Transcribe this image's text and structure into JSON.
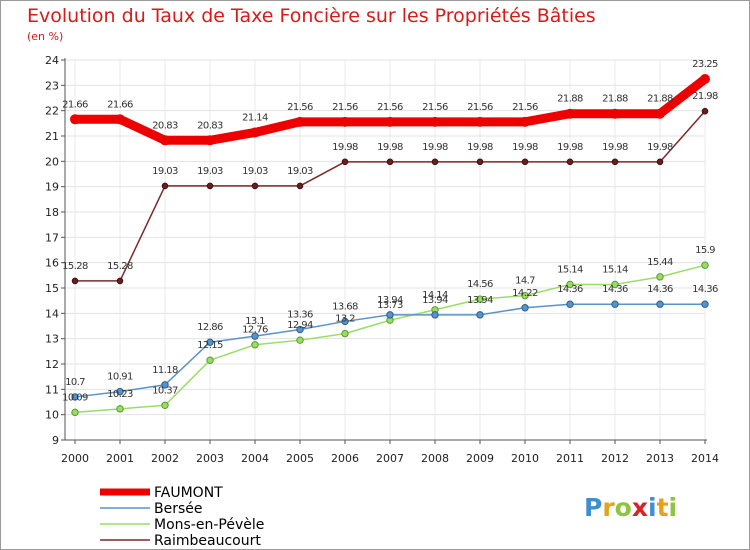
{
  "chart_data": {
    "type": "line",
    "title": "Evolution du Taux de Taxe Foncière sur les Propriétés Bâties",
    "subtitle": "(en %)",
    "xlabel": "",
    "ylabel": "",
    "ylim": [
      9,
      24
    ],
    "yticks": [
      9,
      10,
      11,
      12,
      13,
      14,
      15,
      16,
      17,
      18,
      19,
      20,
      21,
      22,
      23,
      24
    ],
    "grid": true,
    "categories": [
      "2000",
      "2001",
      "2002",
      "2003",
      "2004",
      "2005",
      "2006",
      "2007",
      "2008",
      "2009",
      "2010",
      "2011",
      "2012",
      "2013",
      "2014"
    ],
    "series": [
      {
        "name": "FAUMONT",
        "color": "#ee0000",
        "values": [
          21.66,
          21.66,
          20.83,
          20.83,
          21.14,
          21.56,
          21.56,
          21.56,
          21.56,
          21.56,
          21.56,
          21.88,
          21.88,
          21.88,
          23.25
        ],
        "labels": [
          "21.66",
          "21.66",
          "20.83",
          "20.83",
          "21.14",
          "21.56",
          "21.56",
          "21.56",
          "21.56",
          "21.56",
          "21.56",
          "21.88",
          "21.88",
          "21.88",
          "23.25"
        ]
      },
      {
        "name": "Bersée",
        "color": "#5a93c8",
        "values": [
          10.7,
          10.91,
          11.18,
          12.86,
          13.1,
          13.36,
          13.68,
          13.94,
          13.94,
          13.94,
          14.22,
          14.36,
          14.36,
          14.36,
          14.36
        ],
        "labels": [
          "10.7",
          "10.91",
          "11.18",
          "12.86",
          "13.1",
          "13.36",
          "13.68",
          "13.94",
          "13.94",
          "13.94",
          "14.22",
          "14.36",
          "14.36",
          "14.36",
          "14.36"
        ]
      },
      {
        "name": "Mons-en-Pévèle",
        "color": "#99dd66",
        "values": [
          10.09,
          10.23,
          10.37,
          12.15,
          12.76,
          12.94,
          13.2,
          13.73,
          14.14,
          14.56,
          14.7,
          15.14,
          15.14,
          15.44,
          15.9
        ],
        "labels": [
          "10.09",
          "10.23",
          "10.37",
          "12.15",
          "12.76",
          "12.94",
          "13.2",
          "13.73",
          "14.14",
          "14.56",
          "14.7",
          "15.14",
          "15.14",
          "15.44",
          "15.9"
        ]
      },
      {
        "name": "Raimbeaucourt",
        "color": "#7a2a2a",
        "values": [
          15.28,
          15.28,
          19.03,
          19.03,
          19.03,
          19.03,
          19.98,
          19.98,
          19.98,
          19.98,
          19.98,
          19.98,
          19.98,
          19.98,
          21.98
        ],
        "labels": [
          "15.28",
          "15.28",
          "19.03",
          "19.03",
          "19.03",
          "19.03",
          "19.98",
          "19.98",
          "19.98",
          "19.98",
          "19.98",
          "19.98",
          "19.98",
          "19.98",
          "21.98"
        ]
      }
    ],
    "legend": {
      "placement": "bottom-left",
      "items": [
        "FAUMONT",
        "Bersée",
        "Mons-en-Pévèle",
        "Raimbeaucourt"
      ]
    }
  },
  "brand": {
    "letters": [
      "P",
      "r",
      "o",
      "x",
      "i",
      "t",
      "i"
    ],
    "colors": [
      "#3d8fd1",
      "#e8a21a",
      "#8cc63f",
      "#d8232a",
      "#3d8fd1",
      "#e8a21a",
      "#8cc63f"
    ]
  }
}
